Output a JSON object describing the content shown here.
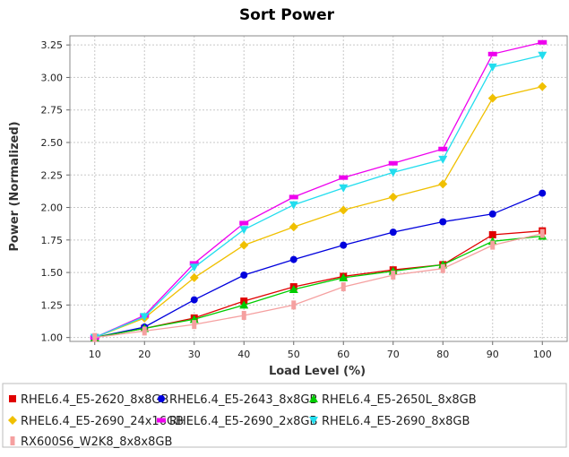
{
  "chart_data": {
    "type": "line",
    "title": "Sort Power",
    "xlabel": "Load Level (%)",
    "ylabel": "Power (Normalized)",
    "x": [
      10,
      20,
      30,
      40,
      50,
      60,
      70,
      80,
      90,
      100
    ],
    "xlim": [
      5,
      105
    ],
    "ylim": [
      0.97,
      3.32
    ],
    "yticks": [
      "1.00",
      "1.25",
      "1.50",
      "1.75",
      "2.00",
      "2.25",
      "2.50",
      "2.75",
      "3.00",
      "3.25"
    ],
    "grid": true,
    "legend_position": "bottom",
    "series": [
      {
        "name": "RHEL6.4_E5-2620_8x8GB",
        "color": "#e00000",
        "marker": "square",
        "values": [
          1.0,
          1.07,
          1.15,
          1.28,
          1.39,
          1.47,
          1.52,
          1.56,
          1.79,
          1.82
        ]
      },
      {
        "name": "RHEL6.4_E5-2643_8x8GB",
        "color": "#0000dd",
        "marker": "circle",
        "values": [
          1.0,
          1.08,
          1.29,
          1.48,
          1.6,
          1.71,
          1.81,
          1.89,
          1.95,
          2.11
        ]
      },
      {
        "name": "RHEL6.4_E5-2650L_8x8GB",
        "color": "#00cc00",
        "marker": "triangle-up",
        "values": [
          1.0,
          1.07,
          1.14,
          1.25,
          1.37,
          1.46,
          1.51,
          1.56,
          1.74,
          1.78
        ]
      },
      {
        "name": "RHEL6.4_E5-2690_24x16GB",
        "color": "#f0c000",
        "marker": "diamond",
        "values": [
          1.0,
          1.15,
          1.46,
          1.71,
          1.85,
          1.98,
          2.08,
          2.18,
          2.84,
          2.93
        ]
      },
      {
        "name": "RHEL6.4_E5-2690_2x8GB",
        "color": "#ee00ee",
        "marker": "rect-wide",
        "values": [
          1.0,
          1.17,
          1.57,
          1.88,
          2.08,
          2.23,
          2.34,
          2.45,
          3.18,
          3.27
        ]
      },
      {
        "name": "RHEL6.4_E5-2690_8x8GB",
        "color": "#22ddee",
        "marker": "triangle-down",
        "values": [
          1.0,
          1.16,
          1.54,
          1.83,
          2.02,
          2.15,
          2.27,
          2.37,
          3.08,
          3.17
        ]
      },
      {
        "name": "RX600S6_W2K8_8x8x8GB",
        "color": "#f5a0a0",
        "marker": "rect-tall",
        "values": [
          1.0,
          1.05,
          1.1,
          1.17,
          1.25,
          1.39,
          1.48,
          1.53,
          1.71,
          1.8
        ]
      }
    ]
  }
}
